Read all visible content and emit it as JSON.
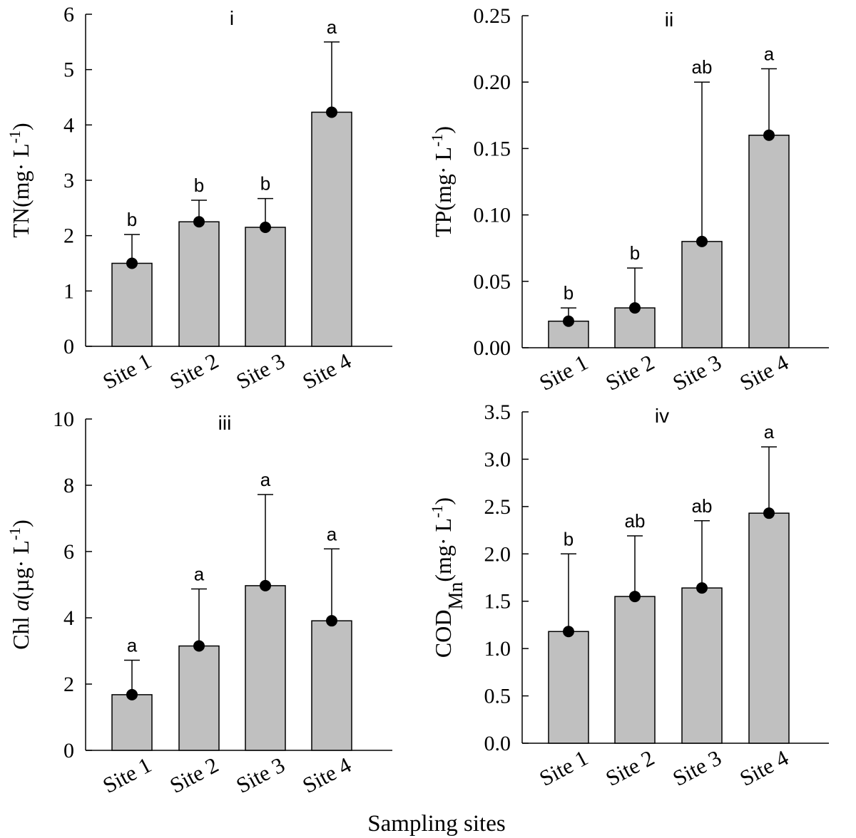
{
  "colors": {
    "bar_fill": "#c0c0c0",
    "stroke": "#000000",
    "marker": "#000000",
    "background": "#ffffff"
  },
  "xlabel": "Sampling sites",
  "chart_data": [
    {
      "type": "bar",
      "title": "i",
      "ylabel": {
        "main": "TN(mg· L",
        "sup": "-1",
        "close": ")"
      },
      "ylim": [
        0,
        6
      ],
      "yticks": [
        "0",
        "1",
        "2",
        "3",
        "4",
        "5",
        "6"
      ],
      "categories": [
        "Site 1",
        "Site 2",
        "Site 3",
        "Site 4"
      ],
      "values": [
        1.5,
        2.25,
        2.15,
        4.23
      ],
      "error_upper": [
        2.02,
        2.64,
        2.67,
        5.5
      ],
      "significance": [
        "b",
        "b",
        "b",
        "a"
      ]
    },
    {
      "type": "bar",
      "title": "ii",
      "ylabel": {
        "main": "TP(mg· L",
        "sup": "-1",
        "close": ")"
      },
      "ylim": [
        0,
        0.25
      ],
      "yticks": [
        "0.00",
        "0.05",
        "0.10",
        "0.15",
        "0.20",
        "0.25"
      ],
      "categories": [
        "Site 1",
        "Site 2",
        "Site 3",
        "Site 4"
      ],
      "values": [
        0.02,
        0.03,
        0.08,
        0.16
      ],
      "error_upper": [
        0.03,
        0.06,
        0.2,
        0.21
      ],
      "significance": [
        "b",
        "b",
        "ab",
        "a"
      ]
    },
    {
      "type": "bar",
      "title": "iii",
      "ylabel": {
        "main": "Chl ",
        "italic": "a",
        "rest": "(µg· L",
        "sup": "-1",
        "close": ")"
      },
      "ylim": [
        0,
        10
      ],
      "yticks": [
        "0",
        "2",
        "4",
        "6",
        "8",
        "10"
      ],
      "categories": [
        "Site 1",
        "Site 2",
        "Site 3",
        "Site 4"
      ],
      "values": [
        1.68,
        3.15,
        4.97,
        3.91
      ],
      "error_upper": [
        2.72,
        4.87,
        7.72,
        6.08
      ],
      "significance": [
        "a",
        "a",
        "a",
        "a"
      ]
    },
    {
      "type": "bar",
      "title": "iv",
      "ylabel": {
        "main": "COD",
        "sub": "Mn",
        "rest": "(mg· L",
        "sup": "-1",
        "close": ")"
      },
      "ylim": [
        0,
        3.5
      ],
      "yticks": [
        "0.0",
        "0.5",
        "1.0",
        "1.5",
        "2.0",
        "2.5",
        "3.0",
        "3.5"
      ],
      "categories": [
        "Site 1",
        "Site 2",
        "Site 3",
        "Site 4"
      ],
      "values": [
        1.18,
        1.55,
        1.64,
        2.43
      ],
      "error_upper": [
        2.0,
        2.19,
        2.35,
        3.13
      ],
      "significance": [
        "b",
        "ab",
        "ab",
        "a"
      ]
    }
  ]
}
